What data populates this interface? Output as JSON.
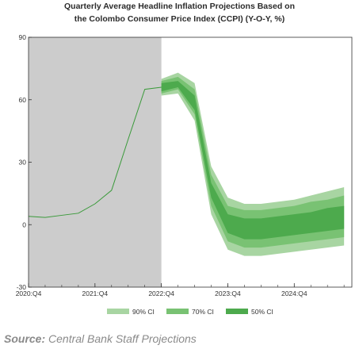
{
  "chart_data": {
    "type": "area",
    "title_line1": "Quarterly Average Headline Inflation Projections Based on",
    "title_line2": "the Colombo Consumer Price Index (CCPI) (Y-O-Y, %)",
    "source_prefix": "Source:",
    "source_text": "Central Bank Staff Projections",
    "ylim": [
      -30,
      90
    ],
    "yticks": [
      -30,
      0,
      30,
      60,
      90
    ],
    "xtick_labels": [
      "2020:Q4",
      "2021:Q4",
      "2022:Q4",
      "2023:Q4",
      "2024:Q4"
    ],
    "x_quarters": [
      "2020:Q4",
      "2021:Q1",
      "2021:Q2",
      "2021:Q3",
      "2021:Q4",
      "2022:Q1",
      "2022:Q2",
      "2022:Q3",
      "2022:Q4",
      "2023:Q1",
      "2023:Q2",
      "2023:Q3",
      "2023:Q4",
      "2024:Q1",
      "2024:Q2",
      "2024:Q3",
      "2024:Q4",
      "2025:Q1",
      "2025:Q2",
      "2025:Q3"
    ],
    "shaded_region": [
      "2020:Q4",
      "2022:Q4"
    ],
    "actual": {
      "x": [
        "2020:Q4",
        "2021:Q1",
        "2021:Q2",
        "2021:Q3",
        "2021:Q4",
        "2022:Q1",
        "2022:Q2",
        "2022:Q3",
        "2022:Q4"
      ],
      "y": [
        4,
        3.5,
        4.5,
        5.5,
        10,
        16.5,
        41,
        65,
        66
      ]
    },
    "projection_x": [
      "2022:Q4",
      "2023:Q1",
      "2023:Q2",
      "2023:Q3",
      "2023:Q4",
      "2024:Q1",
      "2024:Q2",
      "2024:Q3",
      "2024:Q4",
      "2025:Q1",
      "2025:Q2",
      "2025:Q3"
    ],
    "bands": [
      {
        "name": "90% CI",
        "color": "#a8d5a2",
        "lower": [
          62,
          63,
          50,
          5,
          -12,
          -15,
          -15,
          -14,
          -13,
          -12,
          -11,
          -10
        ],
        "upper": [
          70,
          73,
          68,
          28,
          13,
          10,
          10,
          11,
          12,
          14,
          16,
          18
        ]
      },
      {
        "name": "70% CI",
        "color": "#79c273",
        "lower": [
          63,
          65,
          53,
          9,
          -8,
          -11,
          -11,
          -10,
          -9,
          -8,
          -7,
          -6
        ],
        "upper": [
          69,
          71,
          65,
          24,
          9,
          7,
          7,
          8,
          9,
          11,
          12,
          14
        ]
      },
      {
        "name": "50% CI",
        "color": "#4daa4d",
        "lower": [
          64,
          66,
          55,
          13,
          -4,
          -7,
          -7,
          -6,
          -5,
          -4,
          -3,
          -2
        ],
        "upper": [
          68,
          69,
          62,
          20,
          5,
          3,
          3,
          4,
          5,
          6,
          8,
          9
        ]
      }
    ],
    "colors": {
      "shade": "#cccccc",
      "actual_line": "#3a9a3a",
      "axis": "#333333"
    },
    "legend": [
      {
        "label": "90% CI",
        "color": "#a8d5a2"
      },
      {
        "label": "70% CI",
        "color": "#79c273"
      },
      {
        "label": "50% CI",
        "color": "#4daa4d"
      }
    ],
    "legend_position": "bottom-center",
    "grid": false
  }
}
